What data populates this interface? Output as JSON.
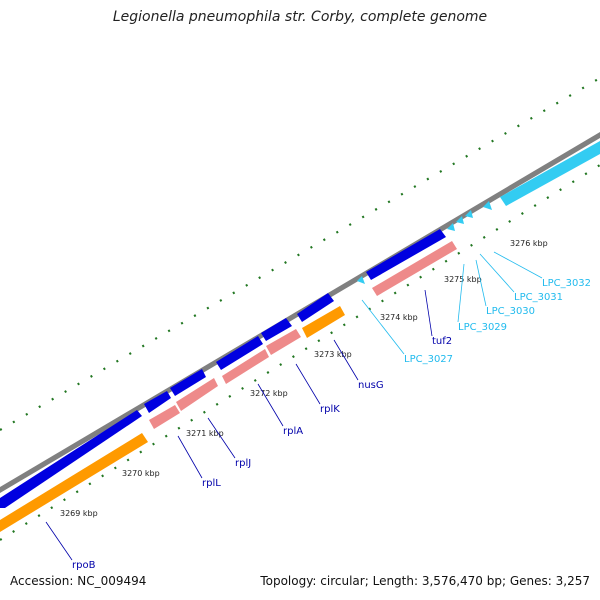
{
  "title": "Legionella pneumophila str. Corby, complete genome",
  "footer": {
    "accession_label": "Accession:",
    "accession": "NC_009494",
    "topology_label": "Topology:",
    "topology": "circular",
    "length_label": "Length:",
    "length": "3,576,470 bp",
    "genes_label": "Genes:",
    "genes": "3,257"
  },
  "colors": {
    "backbone": "#808080",
    "cds_dark_blue": "#0000e0",
    "cds_light_blue": "#33ccf2",
    "rna_pink": "#ee8a8a",
    "gene_orange": "#ff9a00",
    "tick_green": "#227722",
    "label_dark_blue": "#0000aa",
    "label_light_blue": "#22bbee"
  },
  "kbp_ticks": [
    "3269 kbp",
    "3270 kbp",
    "3271 kbp",
    "3272 kbp",
    "3273 kbp",
    "3274 kbp",
    "3275 kbp",
    "3276 kbp"
  ],
  "gene_labels": [
    "rpoB",
    "rplL",
    "rplJ",
    "rplA",
    "rplK",
    "nusG",
    "tuf2",
    "LPC_3027",
    "LPC_3029",
    "LPC_3030",
    "LPC_3031",
    "LPC_3032"
  ]
}
